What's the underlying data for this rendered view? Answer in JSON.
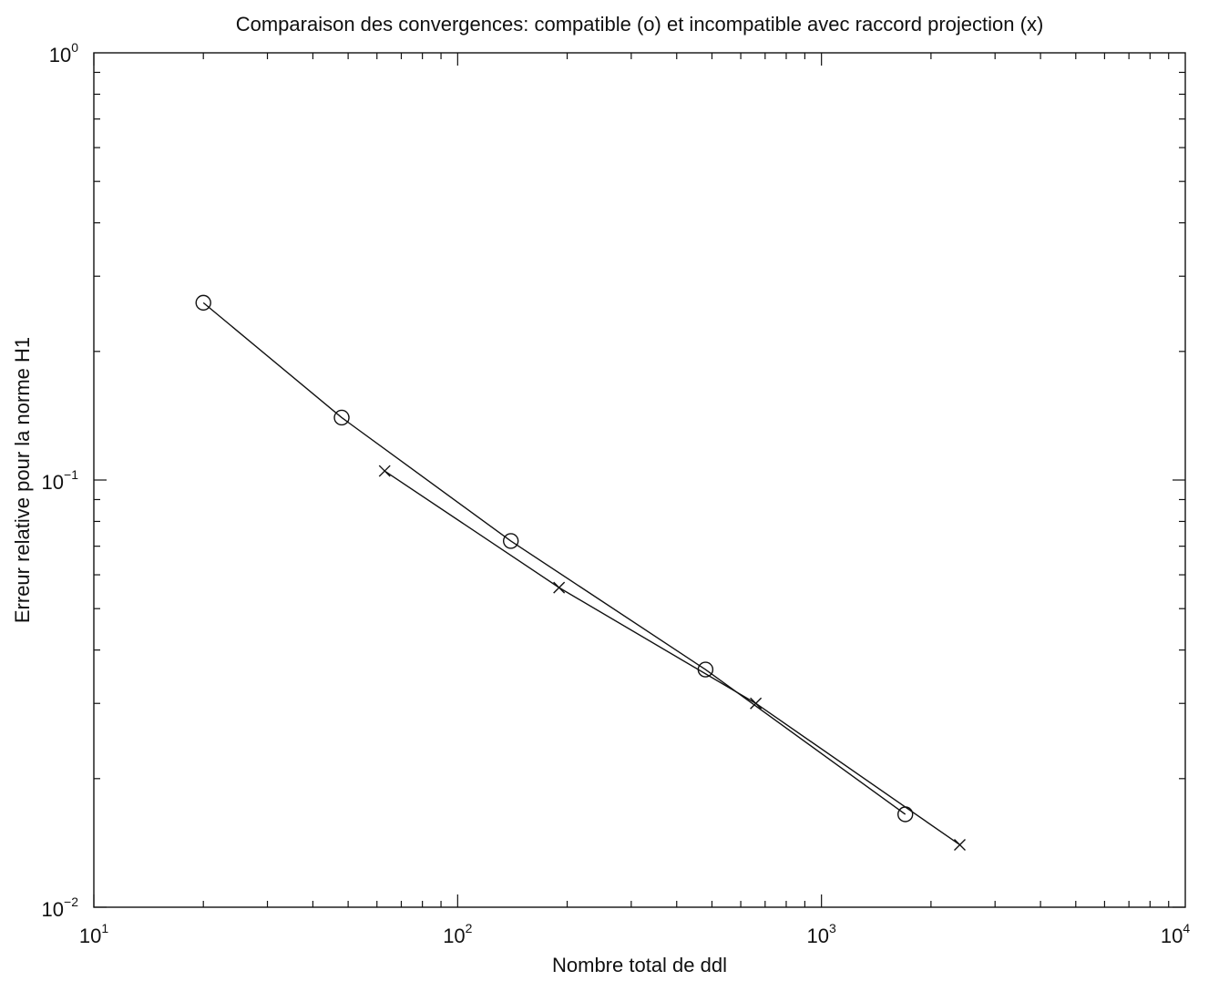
{
  "chart_data": {
    "type": "line",
    "title": "Comparaison des convergences: compatible (o) et incompatible avec raccord projection (x)",
    "xlabel": "Nombre total de ddl",
    "ylabel": "Erreur relative pour la norme H1",
    "xscale": "log",
    "yscale": "log",
    "xlim": [
      10,
      10000
    ],
    "ylim": [
      0.01,
      1
    ],
    "grid": false,
    "x_ticks": [
      {
        "value": 10,
        "base": "10",
        "exp": "1"
      },
      {
        "value": 100,
        "base": "10",
        "exp": "2"
      },
      {
        "value": 1000,
        "base": "10",
        "exp": "3"
      },
      {
        "value": 10000,
        "base": "10",
        "exp": "4"
      }
    ],
    "y_ticks": [
      {
        "value": 0.01,
        "base": "10",
        "exp": "−2"
      },
      {
        "value": 0.1,
        "base": "10",
        "exp": "−1"
      },
      {
        "value": 1,
        "base": "10",
        "exp": "0"
      }
    ],
    "series": [
      {
        "marker": "circle",
        "x": [
          20,
          48,
          140,
          480,
          1700
        ],
        "y": [
          0.26,
          0.14,
          0.072,
          0.036,
          0.0165
        ]
      },
      {
        "marker": "x",
        "x": [
          63,
          190,
          660,
          2400
        ],
        "y": [
          0.105,
          0.056,
          0.03,
          0.014
        ]
      }
    ],
    "colors": {
      "line": "#111111",
      "background": "#ffffff"
    }
  }
}
